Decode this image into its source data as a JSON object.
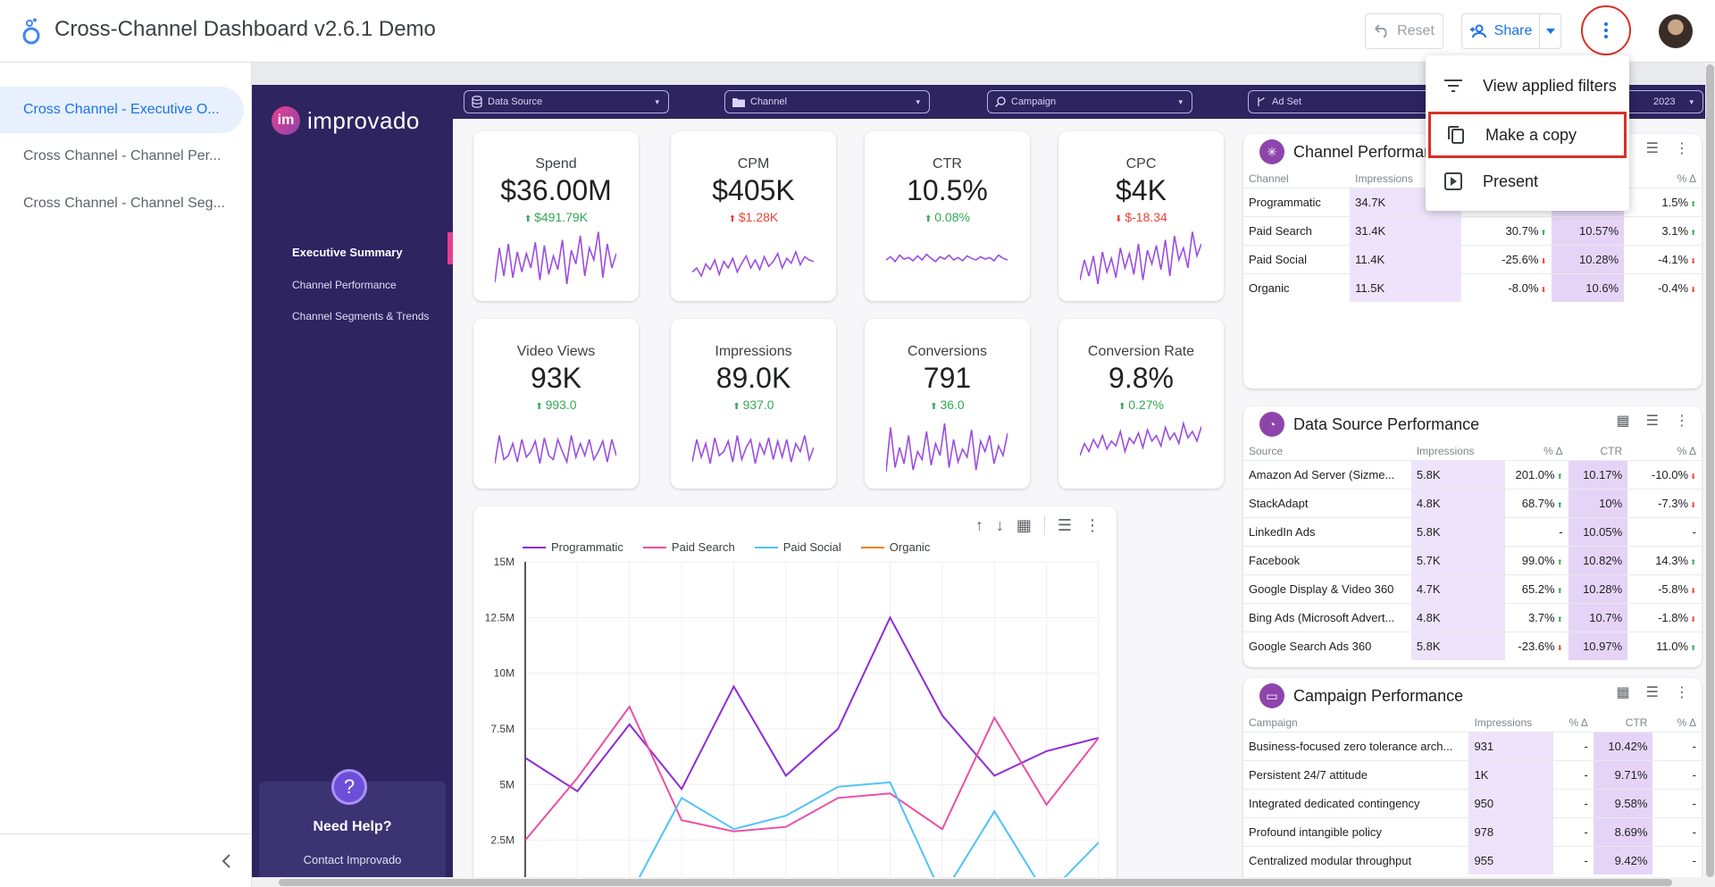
{
  "header": {
    "title": "Cross-Channel Dashboard v2.6.1 Demo",
    "reset_label": "Reset",
    "share_label": "Share"
  },
  "pages": [
    {
      "label": "Cross Channel - Executive O...",
      "active": true
    },
    {
      "label": "Cross Channel - Channel Per...",
      "active": false
    },
    {
      "label": "Cross Channel - Channel Seg...",
      "active": false
    }
  ],
  "menu": {
    "items": [
      {
        "label": "View applied filters",
        "icon": "filter-list-icon"
      },
      {
        "label": "Make a copy",
        "icon": "copy-icon"
      },
      {
        "label": "Present",
        "icon": "present-icon"
      }
    ]
  },
  "report": {
    "brand": "improvado",
    "brand_mark": "im",
    "nav": [
      "Executive Summary",
      "Channel Performance",
      "Channel Segments & Trends"
    ],
    "help": {
      "title": "Need Help?",
      "link": "Contact Improvado",
      "icon": "?"
    },
    "filters": [
      {
        "label": "Data Source",
        "icon": "database-icon"
      },
      {
        "label": "Channel",
        "icon": "folder-icon"
      },
      {
        "label": "Campaign",
        "icon": "search-icon"
      },
      {
        "label": "Ad Set",
        "icon": "branch-icon"
      }
    ],
    "date_fragment": "2023"
  },
  "kpis": [
    {
      "label": "Spend",
      "value": "$36.00M",
      "delta": "$491.79K",
      "dir": "up",
      "spark": [
        12,
        55,
        20,
        60,
        18,
        50,
        25,
        48,
        30,
        62,
        15,
        58,
        22,
        45,
        28,
        65,
        10,
        52,
        35,
        70,
        20,
        55,
        40,
        75,
        18,
        60,
        30,
        48
      ]
    },
    {
      "label": "CPM",
      "value": "$405K",
      "delta": "$1.28K",
      "dir": "up-red",
      "spark": [
        25,
        30,
        20,
        35,
        28,
        40,
        22,
        38,
        30,
        42,
        25,
        36,
        45,
        30,
        40,
        28,
        44,
        32,
        38,
        48,
        30,
        42,
        36,
        50,
        34,
        44,
        40,
        38
      ]
    },
    {
      "label": "CTR",
      "value": "10.5%",
      "delta": "0.08%",
      "dir": "up",
      "spark": [
        40,
        44,
        38,
        46,
        41,
        43,
        39,
        45,
        40,
        47,
        42,
        38,
        44,
        41,
        46,
        40,
        43,
        39,
        45,
        42,
        40,
        44,
        41,
        43,
        39,
        46,
        42,
        40
      ]
    },
    {
      "label": "CPC",
      "value": "$4K",
      "delta": "$-18.34",
      "dir": "down",
      "spark": [
        15,
        40,
        20,
        45,
        10,
        50,
        25,
        42,
        18,
        55,
        30,
        48,
        22,
        60,
        15,
        52,
        35,
        58,
        28,
        65,
        20,
        70,
        40,
        55,
        30,
        75,
        45,
        60
      ]
    },
    {
      "label": "Video Views",
      "value": "93K",
      "delta": "993.0",
      "dir": "up",
      "spark": [
        20,
        55,
        25,
        30,
        45,
        22,
        50,
        28,
        35,
        48,
        20,
        52,
        30,
        25,
        50,
        35,
        22,
        55,
        28,
        45,
        30,
        50,
        25,
        35,
        48,
        22,
        50,
        30
      ]
    },
    {
      "label": "Impressions",
      "value": "89.0K",
      "delta": "937.0",
      "dir": "up",
      "spark": [
        22,
        50,
        28,
        45,
        20,
        52,
        30,
        35,
        48,
        22,
        55,
        25,
        40,
        50,
        20,
        45,
        32,
        52,
        25,
        48,
        28,
        50,
        22,
        45,
        35,
        55,
        25,
        40
      ]
    },
    {
      "label": "Conversions",
      "value": "791",
      "delta": "36.0",
      "dir": "up",
      "spark": [
        10,
        65,
        15,
        40,
        20,
        55,
        12,
        35,
        25,
        60,
        18,
        45,
        30,
        70,
        15,
        50,
        22,
        38,
        28,
        62,
        12,
        48,
        35,
        55,
        20,
        42,
        30,
        58
      ]
    },
    {
      "label": "Conversion Rate",
      "value": "9.8%",
      "delta": "0.27%",
      "dir": "up",
      "spark": [
        30,
        45,
        35,
        50,
        40,
        55,
        38,
        48,
        42,
        60,
        35,
        52,
        45,
        58,
        40,
        62,
        48,
        55,
        42,
        65,
        50,
        58,
        45,
        70,
        52,
        60,
        48,
        66
      ]
    }
  ],
  "chart_data": {
    "type": "line",
    "title": "",
    "xlabel": "",
    "ylabel": "",
    "ylim": [
      0,
      15000000
    ],
    "yticks": [
      "15M",
      "12.5M",
      "10M",
      "7.5M",
      "5M",
      "2.5M"
    ],
    "grid": true,
    "legend_position": "top-left",
    "series": [
      {
        "name": "Programmatic",
        "color": "#8e2bd9",
        "values": [
          6200000,
          4700000,
          7700000,
          4800000,
          9400000,
          5400000,
          7500000,
          12500000,
          8100000,
          5400000,
          6500000,
          7100000
        ]
      },
      {
        "name": "Paid Search",
        "color": "#ec4fa3",
        "values": [
          2500000,
          5300000,
          8500000,
          3400000,
          2900000,
          3100000,
          4400000,
          4600000,
          3000000,
          8000000,
          4100000,
          7100000
        ]
      },
      {
        "name": "Paid Social",
        "color": "#4fc3f7",
        "values": [
          0,
          0,
          0,
          4400000,
          3000000,
          3600000,
          4900000,
          5100000,
          0,
          3800000,
          0,
          2400000
        ]
      },
      {
        "name": "Organic",
        "color": "#f57c00",
        "values": []
      }
    ]
  },
  "tables": {
    "channel": {
      "title": "Channel Performance",
      "icon": "asterisk-icon",
      "columns": [
        "Channel",
        "Impressions",
        "",
        "",
        "% Δ"
      ],
      "rows": [
        [
          "Programmatic",
          "34.7K",
          "",
          "",
          "1.5%"
        ],
        [
          "Paid Search",
          "31.4K",
          "30.7%",
          "10.57%",
          "3.1%"
        ],
        [
          "Paid Social",
          "11.4K",
          "-25.6%",
          "10.28%",
          "-4.1%"
        ],
        [
          "Organic",
          "11.5K",
          "-8.0%",
          "10.6%",
          "-0.4%"
        ]
      ]
    },
    "source": {
      "title": "Data Source Performance",
      "icon": "pie-icon",
      "columns": [
        "Source",
        "Impressions",
        "% Δ",
        "CTR",
        "% Δ"
      ],
      "rows": [
        [
          "Amazon Ad Server (Sizme...",
          "5.8K",
          "201.0%",
          "10.17%",
          "-10.0%"
        ],
        [
          "StackAdapt",
          "4.8K",
          "68.7%",
          "10%",
          "-7.3%"
        ],
        [
          "LinkedIn Ads",
          "5.8K",
          "-",
          "10.05%",
          "-"
        ],
        [
          "Facebook",
          "5.7K",
          "99.0%",
          "10.82%",
          "14.3%"
        ],
        [
          "Google Display & Video 360",
          "4.7K",
          "65.2%",
          "10.28%",
          "-5.8%"
        ],
        [
          "Bing Ads (Microsoft Advert...",
          "4.8K",
          "3.7%",
          "10.7%",
          "-1.8%"
        ],
        [
          "Google Search Ads 360",
          "5.8K",
          "-23.6%",
          "10.97%",
          "11.0%"
        ]
      ]
    },
    "campaign": {
      "title": "Campaign Performance",
      "icon": "folder-icon",
      "columns": [
        "Campaign",
        "Impressions",
        "% Δ",
        "CTR",
        "% Δ"
      ],
      "rows": [
        [
          "Business-focused zero tolerance arch...",
          "931",
          "-",
          "10.42%",
          "-"
        ],
        [
          "Persistent 24/7 attitude",
          "1K",
          "-",
          "9.71%",
          "-"
        ],
        [
          "Integrated dedicated contingency",
          "950",
          "-",
          "9.58%",
          "-"
        ],
        [
          "Profound intangible policy",
          "978",
          "-",
          "8.69%",
          "-"
        ],
        [
          "Centralized modular throughput",
          "955",
          "-",
          "9.42%",
          "-"
        ]
      ]
    }
  }
}
